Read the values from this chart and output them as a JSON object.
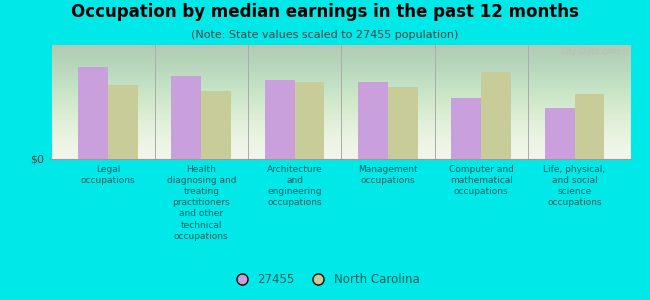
{
  "title": "Occupation by median earnings in the past 12 months",
  "subtitle": "(Note: State values scaled to 27455 population)",
  "background_color": "#00e8e8",
  "plot_bg_color": "#f0f5e8",
  "categories": [
    "Legal\noccupations",
    "Health\ndiagnosing and\ntreating\npractitioners\nand other\ntechnical\noccupations",
    "Architecture\nand\nengineering\noccupations",
    "Management\noccupations",
    "Computer and\nmathematical\noccupations",
    "Life, physical,\nand social\nscience\noccupations"
  ],
  "values_27455": [
    0.85,
    0.76,
    0.73,
    0.71,
    0.56,
    0.47
  ],
  "values_nc": [
    0.68,
    0.63,
    0.71,
    0.66,
    0.8,
    0.6
  ],
  "color_27455": "#c9a0dc",
  "color_nc": "#c8cc99",
  "ylabel": "$0",
  "legend_label_1": "27455",
  "legend_label_2": "North Carolina",
  "bar_width": 0.32,
  "ylim": [
    0,
    1.05
  ],
  "watermark": "City-Data.com"
}
